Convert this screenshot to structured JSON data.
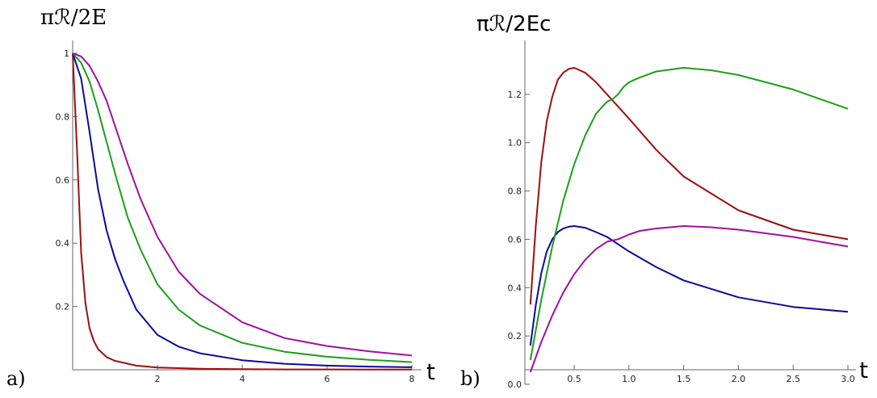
{
  "chart_data": [
    {
      "type": "line",
      "panel_label": "a)",
      "ylabel": "πℛ/2E",
      "xlabel": "t",
      "xlim": [
        0,
        8
      ],
      "ylim": [
        0,
        1.0
      ],
      "xticks": [
        2,
        4,
        6,
        8
      ],
      "yticks": [
        0.2,
        0.4,
        0.6,
        0.8,
        1.0
      ],
      "grid": false,
      "series": [
        {
          "color": "#9a1010",
          "x": [
            0,
            0.1,
            0.2,
            0.3,
            0.4,
            0.5,
            0.6,
            0.8,
            1.0,
            1.5,
            2,
            3,
            4,
            5,
            6,
            7,
            8
          ],
          "y": [
            1.0,
            0.7,
            0.37,
            0.21,
            0.13,
            0.09,
            0.065,
            0.04,
            0.028,
            0.013,
            0.007,
            0.003,
            0.002,
            0.001,
            0.001,
            0.0005,
            0.0005
          ]
        },
        {
          "color": "#0a0a9a",
          "x": [
            0,
            0.2,
            0.4,
            0.6,
            0.8,
            1.0,
            1.2,
            1.5,
            2,
            2.5,
            3,
            4,
            5,
            6,
            7,
            8
          ],
          "y": [
            1.0,
            0.92,
            0.75,
            0.57,
            0.44,
            0.35,
            0.28,
            0.19,
            0.11,
            0.073,
            0.052,
            0.03,
            0.019,
            0.013,
            0.01,
            0.008
          ]
        },
        {
          "color": "#1aa01a",
          "x": [
            0,
            0.2,
            0.4,
            0.6,
            0.8,
            1.0,
            1.3,
            1.6,
            2,
            2.5,
            3,
            4,
            5,
            6,
            7,
            8
          ],
          "y": [
            1.0,
            0.97,
            0.91,
            0.82,
            0.72,
            0.62,
            0.48,
            0.38,
            0.27,
            0.19,
            0.14,
            0.085,
            0.057,
            0.041,
            0.031,
            0.024
          ]
        },
        {
          "color": "#a010a0",
          "x": [
            0,
            0.2,
            0.4,
            0.6,
            0.8,
            1.0,
            1.3,
            1.6,
            2,
            2.5,
            3,
            4,
            5,
            6,
            7,
            8
          ],
          "y": [
            1.0,
            0.99,
            0.96,
            0.91,
            0.85,
            0.77,
            0.65,
            0.54,
            0.42,
            0.31,
            0.24,
            0.15,
            0.1,
            0.075,
            0.058,
            0.045
          ]
        }
      ]
    },
    {
      "type": "line",
      "panel_label": "b)",
      "ylabel": "πℛ/2Ec",
      "xlabel": "t",
      "xlim": [
        0.05,
        3.0
      ],
      "ylim": [
        0.0,
        1.35
      ],
      "xticks": [
        0.5,
        1.0,
        1.5,
        2.0,
        2.5,
        3.0
      ],
      "yticks": [
        0.0,
        0.2,
        0.4,
        0.6,
        0.8,
        1.0,
        1.2
      ],
      "grid": false,
      "series": [
        {
          "color": "#9a1010",
          "x": [
            0.1,
            0.15,
            0.2,
            0.25,
            0.3,
            0.35,
            0.4,
            0.45,
            0.5,
            0.6,
            0.7,
            0.8,
            1.0,
            1.25,
            1.5,
            2.0,
            2.5,
            3.0
          ],
          "y": [
            0.33,
            0.66,
            0.92,
            1.09,
            1.19,
            1.26,
            1.29,
            1.305,
            1.31,
            1.29,
            1.25,
            1.2,
            1.1,
            0.97,
            0.86,
            0.72,
            0.64,
            0.6
          ]
        },
        {
          "color": "#0a0a9a",
          "x": [
            0.1,
            0.15,
            0.2,
            0.25,
            0.3,
            0.35,
            0.4,
            0.45,
            0.5,
            0.6,
            0.7,
            0.8,
            1.0,
            1.25,
            1.5,
            2.0,
            2.5,
            3.0
          ],
          "y": [
            0.16,
            0.33,
            0.46,
            0.55,
            0.6,
            0.63,
            0.645,
            0.652,
            0.655,
            0.648,
            0.63,
            0.61,
            0.55,
            0.485,
            0.43,
            0.36,
            0.32,
            0.3
          ]
        },
        {
          "color": "#1aa01a",
          "x": [
            0.1,
            0.2,
            0.3,
            0.4,
            0.5,
            0.6,
            0.7,
            0.8,
            0.85,
            0.9,
            0.95,
            1.0,
            1.1,
            1.25,
            1.5,
            1.75,
            2.0,
            2.5,
            3.0
          ],
          "y": [
            0.1,
            0.35,
            0.57,
            0.76,
            0.91,
            1.03,
            1.12,
            1.17,
            1.18,
            1.2,
            1.23,
            1.25,
            1.27,
            1.295,
            1.31,
            1.3,
            1.28,
            1.22,
            1.14
          ]
        },
        {
          "color": "#a010a0",
          "x": [
            0.1,
            0.2,
            0.3,
            0.4,
            0.5,
            0.6,
            0.7,
            0.8,
            0.85,
            0.9,
            1.0,
            1.1,
            1.25,
            1.5,
            1.75,
            2.0,
            2.5,
            3.0
          ],
          "y": [
            0.05,
            0.175,
            0.285,
            0.38,
            0.455,
            0.515,
            0.56,
            0.59,
            0.595,
            0.6,
            0.62,
            0.635,
            0.645,
            0.655,
            0.65,
            0.64,
            0.61,
            0.57
          ]
        }
      ]
    }
  ]
}
